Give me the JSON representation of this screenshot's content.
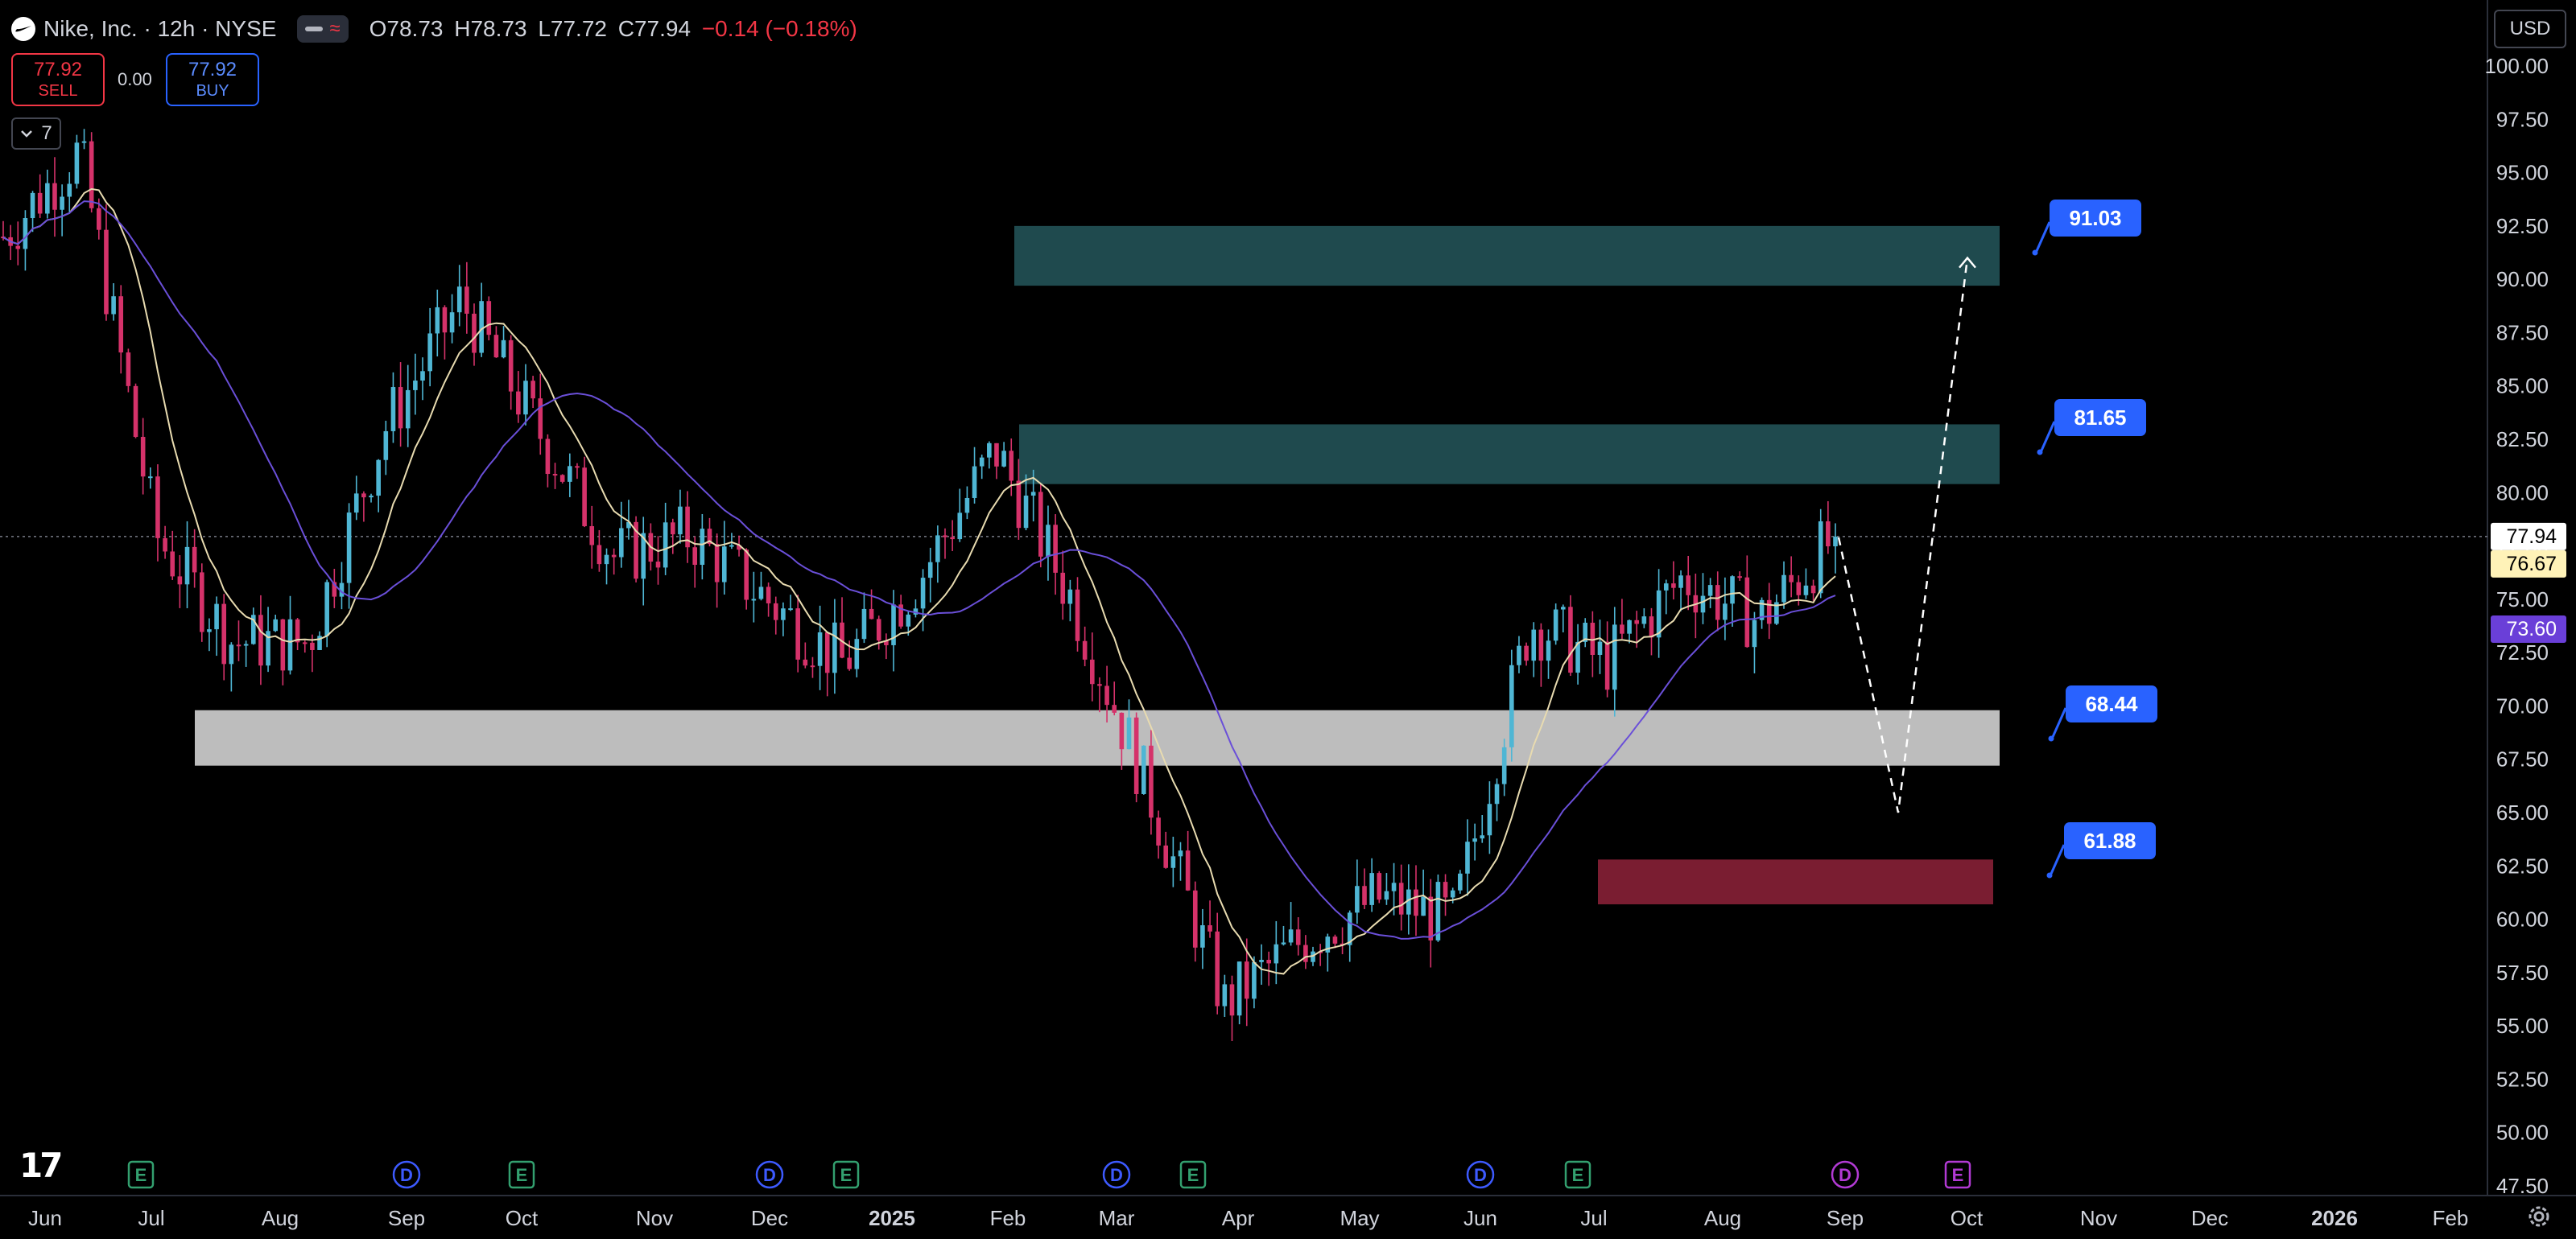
{
  "header": {
    "symbol_title": "Nike, Inc. · 12h · NYSE",
    "ohlc": {
      "open": "O78.73",
      "high": "H78.73",
      "low": "L77.72",
      "close": "C77.94",
      "change": "−0.14 (−0.18%)"
    }
  },
  "trade": {
    "sell_price": "77.92",
    "sell_label": "SELL",
    "spread": "0.00",
    "buy_price": "77.92",
    "buy_label": "BUY"
  },
  "indicator_toggle": {
    "count": "7"
  },
  "currency": "USD",
  "icons": {
    "logo": "nike-swoosh-icon",
    "collapse": "chevron-down-icon",
    "settings": "gear-icon",
    "brand": "tradingview-logo-icon"
  },
  "colors": {
    "up": "#4fb6d4",
    "down": "#d5326a",
    "ma_fast": "#e8dbb0",
    "ma_slow": "#6a4fd8",
    "zone_teal": "#1f4a4e",
    "zone_gray": "#bdbdbd",
    "zone_red": "#7a1d31",
    "label_blue": "#2962ff"
  },
  "chart_data": {
    "type": "candlestick",
    "y_axis": {
      "min": 47.5,
      "max": 100.0,
      "ticks": [
        "100.00",
        "97.50",
        "95.00",
        "92.50",
        "90.00",
        "87.50",
        "85.00",
        "82.50",
        "80.00",
        "77.50",
        "75.00",
        "72.50",
        "70.00",
        "67.50",
        "65.00",
        "62.50",
        "60.00",
        "57.50",
        "55.00",
        "52.50",
        "50.00",
        "47.50"
      ]
    },
    "x_axis": {
      "labels": [
        "Jun",
        "Jul",
        "Aug",
        "Sep",
        "Oct",
        "Nov",
        "Dec",
        "2025",
        "Feb",
        "Mar",
        "Apr",
        "May",
        "Jun",
        "Jul",
        "Aug",
        "Sep",
        "Oct",
        "Nov",
        "Dec",
        "2026",
        "Feb"
      ]
    },
    "price_badges": [
      {
        "value": "77.94",
        "kind": "last"
      },
      {
        "value": "76.67",
        "kind": "ma_fast"
      },
      {
        "value": "73.60",
        "kind": "ma_slow"
      }
    ],
    "approx_close_path": [
      {
        "date": "Jun",
        "close": 92
      },
      {
        "date": "early Jul",
        "close": 96
      },
      {
        "date": "mid Jul",
        "close": 78
      },
      {
        "date": "Aug",
        "close": 73
      },
      {
        "date": "late Aug",
        "close": 73
      },
      {
        "date": "Sep",
        "close": 83
      },
      {
        "date": "late Sep",
        "close": 89
      },
      {
        "date": "Oct",
        "close": 83
      },
      {
        "date": "Nov",
        "close": 77
      },
      {
        "date": "Dec",
        "close": 78
      },
      {
        "date": "2025",
        "close": 75
      },
      {
        "date": "late Jan",
        "close": 72
      },
      {
        "date": "Feb",
        "close": 76
      },
      {
        "date": "late Feb",
        "close": 82
      },
      {
        "date": "Mar",
        "close": 75
      },
      {
        "date": "late Mar",
        "close": 66
      },
      {
        "date": "Apr",
        "close": 56
      },
      {
        "date": "May",
        "close": 59
      },
      {
        "date": "Jun",
        "close": 61
      },
      {
        "date": "late Jun",
        "close": 60
      },
      {
        "date": "Jul",
        "close": 74
      },
      {
        "date": "mid Jul",
        "close": 72
      },
      {
        "date": "Aug",
        "close": 76
      },
      {
        "date": "mid Aug",
        "close": 74
      },
      {
        "date": "Sep",
        "close": 77.94
      }
    ],
    "zones": [
      {
        "top": 92.5,
        "bottom": 89.7,
        "color": "teal"
      },
      {
        "top": 83.2,
        "bottom": 80.4,
        "color": "teal"
      },
      {
        "top": 69.8,
        "bottom": 67.2,
        "color": "gray"
      },
      {
        "top": 62.8,
        "bottom": 60.7,
        "color": "red"
      }
    ],
    "level_labels": [
      "91.03",
      "81.65",
      "68.44",
      "61.88"
    ],
    "projection": [
      {
        "price": 77.9
      },
      {
        "price": 65.0
      },
      {
        "price": 91.0
      }
    ],
    "events": [
      {
        "type": "E",
        "month": "Jun"
      },
      {
        "type": "D",
        "month": "Sep"
      },
      {
        "type": "E",
        "month": "Oct"
      },
      {
        "type": "D",
        "month": "Dec"
      },
      {
        "type": "E",
        "month": "Dec"
      },
      {
        "type": "D",
        "month": "Mar"
      },
      {
        "type": "E",
        "month": "Mar"
      },
      {
        "type": "D",
        "month": "Jun"
      },
      {
        "type": "E",
        "month": "Jul"
      },
      {
        "type": "D",
        "month": "Sep"
      },
      {
        "type": "E",
        "month": "Oct"
      }
    ]
  }
}
